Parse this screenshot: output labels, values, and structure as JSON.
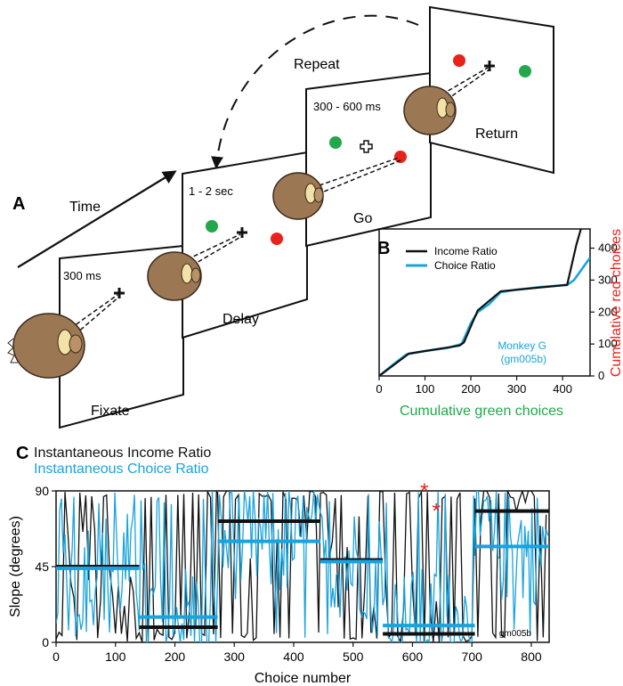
{
  "panelA": {
    "letter": "A",
    "time_label": "Time",
    "repeat_label": "Repeat",
    "screens": [
      {
        "time": "300 ms",
        "label": "Fixate"
      },
      {
        "time": "1 - 2 sec",
        "label": "Delay"
      },
      {
        "time": "300 - 600 ms",
        "label": "Go"
      },
      {
        "time": "",
        "label": "Return"
      }
    ],
    "colors": {
      "green_target": "#22a84a",
      "red_target": "#e8231c",
      "monkey": "#9c7754"
    },
    "icons": [
      "monkey-head-icon",
      "fixation-cross-icon",
      "target-dot-icon"
    ]
  },
  "panelB": {
    "letter": "B",
    "legend": [
      "Income Ratio",
      "Choice Ratio"
    ],
    "annotation_line1": "Monkey G",
    "annotation_line2": "(gm005b)",
    "colors": {
      "income": "#111111",
      "choice": "#1aa3dd",
      "ylabel": "#e8231c",
      "xlabel": "#22a84a"
    },
    "chart_data": {
      "type": "line",
      "xlabel": "Cumulative green choices",
      "ylabel": "Cumulative red choices",
      "xlim": [
        0,
        460
      ],
      "ylim": [
        0,
        460
      ],
      "xticks": [
        0,
        100,
        200,
        300,
        400
      ],
      "yticks": [
        0,
        100,
        200,
        300,
        400
      ],
      "legend_position": "top-left",
      "series": [
        {
          "name": "Income Ratio",
          "x": [
            0,
            65,
            175,
            185,
            215,
            265,
            410,
            430,
            440
          ],
          "y": [
            0,
            70,
            95,
            105,
            205,
            265,
            285,
            410,
            460
          ]
        },
        {
          "name": "Choice Ratio",
          "x": [
            0,
            30,
            60,
            100,
            150,
            180,
            200,
            215,
            240,
            265,
            300,
            350,
            410,
            425,
            445,
            460
          ],
          "y": [
            0,
            35,
            68,
            78,
            88,
            100,
            165,
            200,
            225,
            262,
            270,
            278,
            285,
            300,
            340,
            370
          ]
        }
      ]
    }
  },
  "panelC": {
    "letter": "C",
    "title_line1": "Instantaneous Income Ratio",
    "title_line2": "Instantaneous Choice Ratio",
    "session": "gm005b",
    "asterisk": "*",
    "colors": {
      "income": "#111111",
      "choice": "#1aa3dd",
      "asterisk": "#e8231c"
    },
    "chart_data": {
      "type": "line",
      "xlabel": "Choice number",
      "ylabel": "Slope (degrees)",
      "xlim": [
        0,
        830
      ],
      "ylim": [
        0,
        90
      ],
      "xticks": [
        0,
        100,
        200,
        300,
        400,
        500,
        600,
        700,
        800
      ],
      "yticks": [
        0,
        45,
        90
      ],
      "blocks": [
        {
          "x0": 0,
          "x1": 140,
          "income": 45,
          "choice": 44
        },
        {
          "x0": 140,
          "x1": 272,
          "income": 9,
          "choice": 15
        },
        {
          "x0": 272,
          "x1": 445,
          "income": 72,
          "choice": 60
        },
        {
          "x0": 445,
          "x1": 550,
          "income": 49,
          "choice": 48
        },
        {
          "x0": 550,
          "x1": 705,
          "income": 5,
          "choice": 10
        },
        {
          "x0": 705,
          "x1": 830,
          "income": 78,
          "choice": 57
        }
      ],
      "asterisks": [
        {
          "x": 620,
          "y": 88
        },
        {
          "x": 640,
          "y": 76
        }
      ]
    }
  }
}
